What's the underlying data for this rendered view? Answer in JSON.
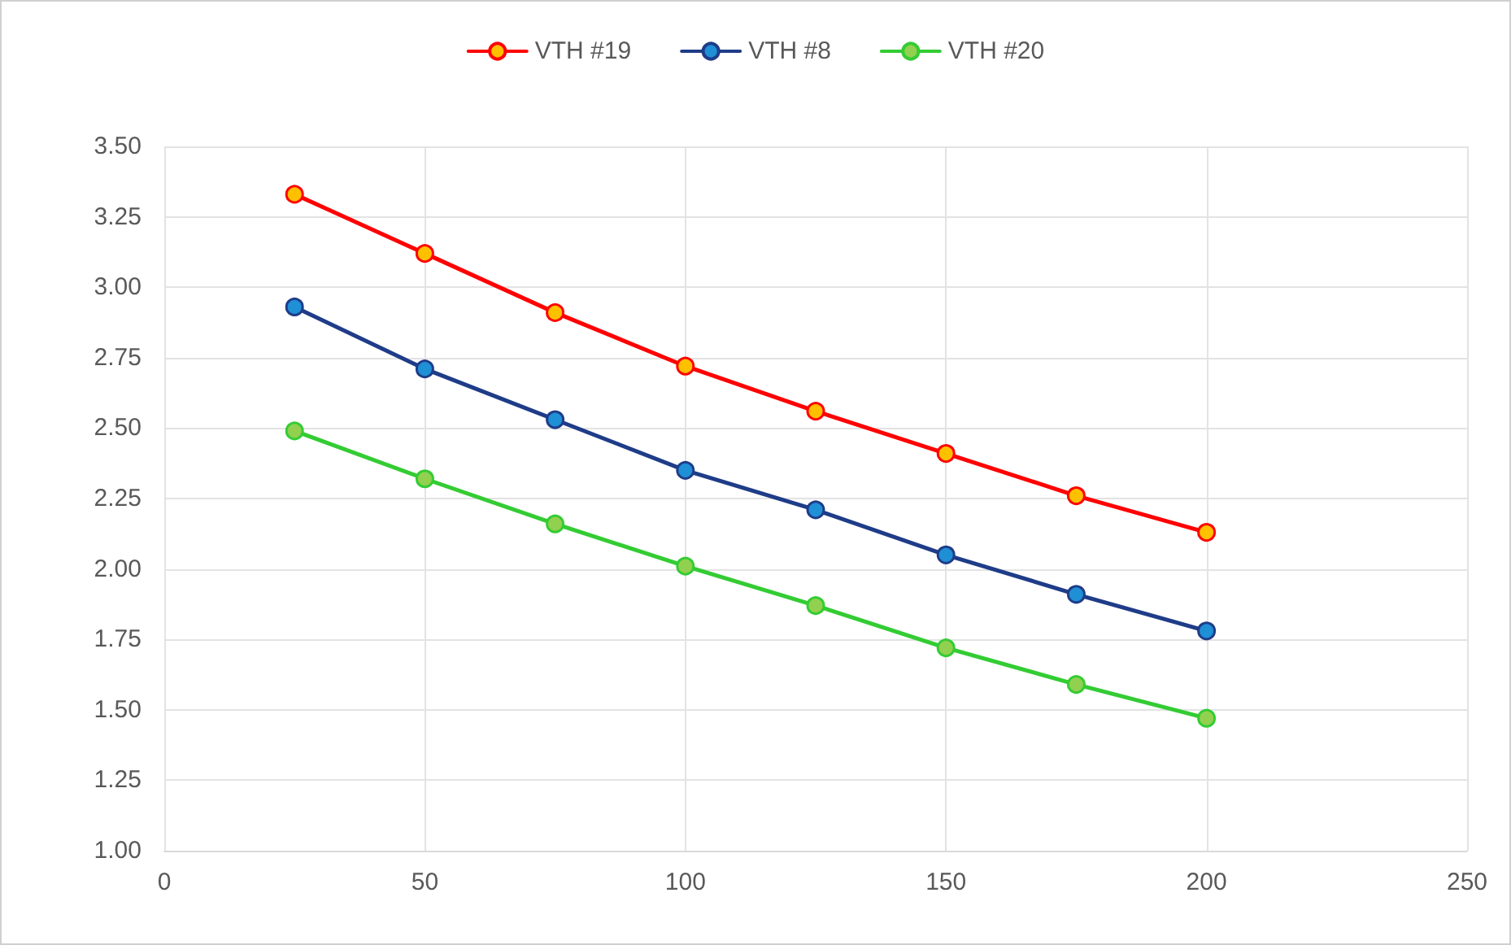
{
  "chart_data": {
    "type": "line",
    "x": [
      25,
      50,
      75,
      100,
      125,
      150,
      175,
      200
    ],
    "series": [
      {
        "name": "VTH #19",
        "color": "#ff0000",
        "values": [
          3.33,
          3.12,
          2.91,
          2.72,
          2.56,
          2.41,
          2.26,
          2.13
        ]
      },
      {
        "name": "VTH #8",
        "color": "#1f3c88",
        "values": [
          2.93,
          2.71,
          2.53,
          2.35,
          2.21,
          2.05,
          1.91,
          1.78
        ]
      },
      {
        "name": "VTH #20",
        "color": "#33cc33",
        "values": [
          2.49,
          2.32,
          2.16,
          2.01,
          1.87,
          1.72,
          1.59,
          1.47
        ]
      }
    ],
    "xlim": [
      0,
      250
    ],
    "xticks": [
      0,
      50,
      100,
      150,
      200,
      250
    ],
    "ylim": [
      1,
      3.5
    ],
    "yticks": [
      {
        "value": 1,
        "label": "1.00"
      },
      {
        "value": 1.25,
        "label": "1.25"
      },
      {
        "value": 1.5,
        "label": "1.50"
      },
      {
        "value": 1.75,
        "label": "1.75"
      },
      {
        "value": 2,
        "label": "2.00"
      },
      {
        "value": 2.25,
        "label": "2.25"
      },
      {
        "value": 2.5,
        "label": "2.50"
      },
      {
        "value": 2.75,
        "label": "2.75"
      },
      {
        "value": 3,
        "label": "3.00"
      },
      {
        "value": 3.25,
        "label": "3.25"
      },
      {
        "value": 3.5,
        "label": "3.50"
      }
    ],
    "grid": true,
    "legend": "top",
    "marker": "circle",
    "line_style": "solid"
  }
}
